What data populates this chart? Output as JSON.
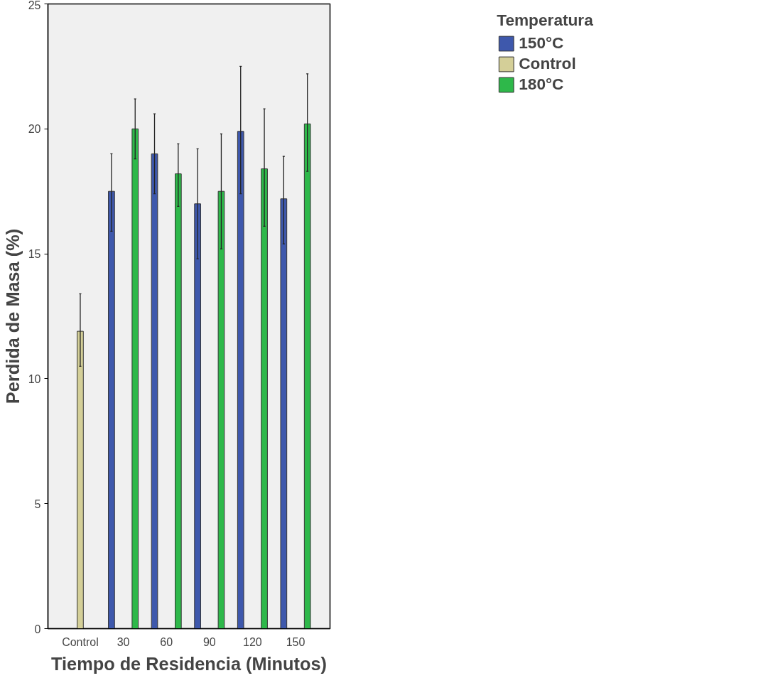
{
  "chart_data": {
    "type": "bar",
    "xlabel": "Tiempo de Residencia (Minutos)",
    "ylabel": "Perdida de Masa (%)",
    "legend_title": "Temperatura",
    "categories": [
      "Control",
      "30",
      "60",
      "90",
      "120",
      "150"
    ],
    "series": [
      {
        "name": "150°C",
        "color": "#3e58ac",
        "values": [
          null,
          17.5,
          19.0,
          17.0,
          19.9,
          17.2
        ],
        "errors": [
          null,
          [
            15.9,
            19.0
          ],
          [
            17.4,
            20.6
          ],
          [
            14.8,
            19.2
          ],
          [
            17.4,
            22.5
          ],
          [
            15.4,
            18.9
          ]
        ]
      },
      {
        "name": "Control",
        "color": "#d4cf98",
        "values": [
          11.9,
          null,
          null,
          null,
          null,
          null
        ],
        "errors": [
          [
            10.5,
            13.4
          ],
          null,
          null,
          null,
          null,
          null
        ]
      },
      {
        "name": "180°C",
        "color": "#2eb84a",
        "values": [
          null,
          20.0,
          18.2,
          17.5,
          18.4,
          20.2
        ],
        "errors": [
          null,
          [
            18.8,
            21.2
          ],
          [
            16.9,
            19.4
          ],
          [
            15.2,
            19.8
          ],
          [
            16.1,
            20.8
          ],
          [
            18.3,
            22.2
          ]
        ]
      }
    ],
    "ylim": [
      0,
      25
    ],
    "yticks": [
      0,
      5,
      10,
      15,
      20,
      25
    ],
    "grid": false,
    "legend": "top right"
  }
}
